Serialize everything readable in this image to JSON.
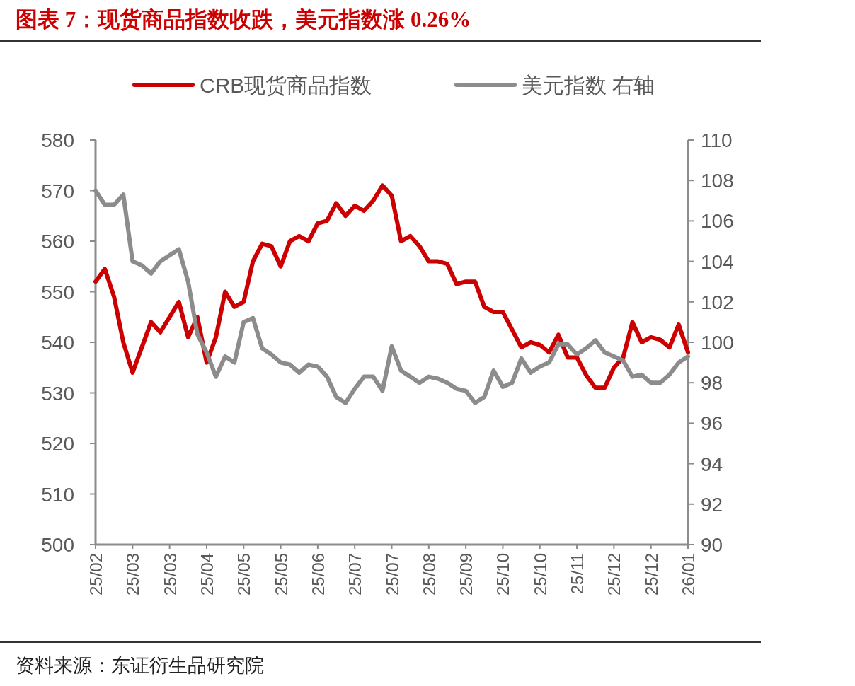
{
  "chart_data": {
    "type": "line",
    "title": "图表 7：现货商品指数收跌，美元指数涨 0.26%",
    "categories": [
      "25/02",
      null,
      null,
      null,
      "25/03",
      null,
      null,
      null,
      "25/03",
      null,
      null,
      null,
      "25/04",
      null,
      null,
      null,
      "25/05",
      null,
      null,
      null,
      "25/05",
      null,
      null,
      null,
      "25/06",
      null,
      null,
      null,
      "25/07",
      null,
      null,
      null,
      "25/07",
      null,
      null,
      null,
      "25/08",
      null,
      null,
      null,
      "25/09",
      null,
      null,
      null,
      "25/10",
      null,
      null,
      null,
      "25/10",
      null,
      null,
      null,
      "25/11",
      null,
      null,
      null,
      "25/12",
      null,
      null,
      null,
      "25/12",
      null,
      null,
      null,
      "26/01"
    ],
    "series": [
      {
        "name": "CRB现货商品指数",
        "color": "#cc0000",
        "values": [
          552,
          554.5,
          549,
          540,
          534,
          539,
          544,
          542,
          545,
          548,
          541,
          545,
          536,
          541,
          550,
          547,
          548,
          556,
          559.5,
          559,
          555,
          560,
          561,
          560,
          563.5,
          564,
          567.5,
          565,
          567,
          566,
          568,
          571,
          569,
          560,
          561,
          559,
          556,
          556,
          555.5,
          551.5,
          552,
          552,
          547,
          546,
          546,
          542.5,
          539,
          540,
          539.5,
          538,
          541.5,
          537,
          537,
          533.5,
          531,
          531,
          535,
          537,
          544,
          540,
          541,
          540.5,
          539,
          543.5,
          538
        ]
      },
      {
        "name": "美元指数 右轴",
        "color": "#8c8c8c",
        "axis": "y2",
        "values": [
          107.5,
          106.8,
          106.8,
          107.3,
          104,
          103.8,
          103.4,
          104,
          104.3,
          104.6,
          103,
          100.4,
          99.5,
          98.3,
          99.3,
          99,
          101,
          101.2,
          99.7,
          99.4,
          99,
          98.9,
          98.5,
          98.9,
          98.8,
          98.3,
          97.3,
          97,
          97.7,
          98.3,
          98.3,
          97.6,
          99.8,
          98.6,
          98.3,
          98,
          98.3,
          98.2,
          98,
          97.7,
          97.6,
          97,
          97.3,
          98.6,
          97.8,
          98,
          99.2,
          98.5,
          98.8,
          99,
          99.9,
          99.9,
          99.4,
          99.7,
          100.1,
          99.5,
          99.3,
          99.1,
          98.3,
          98.4,
          98,
          98,
          98.4,
          99,
          99.3
        ]
      }
    ],
    "ylim": [
      500,
      580
    ],
    "yticks": [
      500,
      510,
      520,
      530,
      540,
      550,
      560,
      570,
      580
    ],
    "y2lim": [
      90,
      110
    ],
    "y2ticks": [
      90,
      92,
      94,
      96,
      98,
      100,
      102,
      104,
      106,
      108,
      110
    ],
    "legend": "top",
    "annotations": [
      "资料来源：东证衍生品研究院"
    ]
  }
}
